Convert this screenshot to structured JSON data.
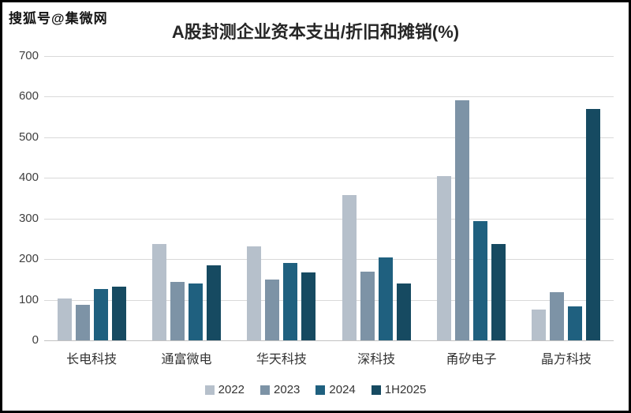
{
  "watermark": "搜狐号@集微网",
  "chart_data": {
    "type": "bar",
    "title": "A股封测企业资本支出/折旧和摊销(%)",
    "xlabel": "",
    "ylabel": "",
    "categories": [
      "长电科技",
      "通富微电",
      "华天科技",
      "深科技",
      "甬矽电子",
      "晶方科技"
    ],
    "series": [
      {
        "name": "2022",
        "color": "#b6c0cb",
        "values": [
          103,
          237,
          231,
          357,
          405,
          76
        ]
      },
      {
        "name": "2023",
        "color": "#7d93a6",
        "values": [
          88,
          143,
          150,
          170,
          592,
          118
        ]
      },
      {
        "name": "2024",
        "color": "#1f607f",
        "values": [
          126,
          140,
          190,
          204,
          293,
          84
        ]
      },
      {
        "name": "1H2025",
        "color": "#164a61",
        "values": [
          133,
          184,
          168,
          140,
          237,
          570
        ]
      }
    ],
    "ylim": [
      0,
      700
    ],
    "yticks": [
      0,
      100,
      200,
      300,
      400,
      500,
      600,
      700
    ],
    "grid": true,
    "legend_position": "bottom"
  }
}
